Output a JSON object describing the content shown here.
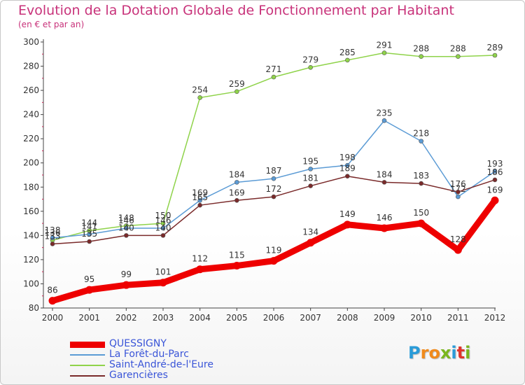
{
  "title": "Evolution de la Dotation Globale de Fonctionnement par Habitant",
  "subtitle": "(en € et par an)",
  "brand": {
    "letters": [
      "P",
      "r",
      "o",
      "x",
      "i",
      "t",
      "i"
    ],
    "colors": [
      "#2a9bd8",
      "#f08a1c",
      "#f08a1c",
      "#7ab61e",
      "#2a9bd8",
      "#e0342c",
      "#7ab61e"
    ]
  },
  "chart_data": {
    "type": "line",
    "x": [
      "2000",
      "2001",
      "2002",
      "2003",
      "2004",
      "2005",
      "2006",
      "2007",
      "2008",
      "2009",
      "2010",
      "2011",
      "2012"
    ],
    "ylim": [
      80,
      300
    ],
    "yticks": [
      "80",
      "100",
      "120",
      "140",
      "160",
      "180",
      "200",
      "220",
      "240",
      "260",
      "280",
      "300"
    ],
    "grid": false,
    "legend_position": "bottom-left",
    "series": [
      {
        "name": "QUESSIGNY",
        "color": "#ee0000",
        "values": [
          86,
          95,
          99,
          101,
          112,
          115,
          119,
          134,
          149,
          146,
          150,
          128,
          169
        ],
        "labels": [
          "86",
          "95",
          "99",
          "101",
          "112",
          "115",
          "119",
          "134",
          "149",
          "146",
          "150",
          "128",
          "169"
        ]
      },
      {
        "name": "La Forêt-du-Parc",
        "color": "#5b9bd5",
        "values": [
          138,
          141,
          146,
          146,
          169,
          184,
          187,
          195,
          198,
          235,
          218,
          172,
          193
        ],
        "labels": [
          "138",
          "141",
          "146",
          "146",
          "169",
          "184",
          "187",
          "195",
          "198",
          "235",
          "218",
          "172",
          "193"
        ]
      },
      {
        "name": "Saint-André-de-l'Eure",
        "color": "#8fd34a",
        "values": [
          136,
          144,
          148,
          150,
          254,
          259,
          271,
          279,
          285,
          291,
          288,
          288,
          289
        ],
        "labels": [
          "136",
          "144",
          "148",
          "150",
          "254",
          "259",
          "271",
          "279",
          "285",
          "291",
          "288",
          "288",
          "289"
        ]
      },
      {
        "name": "Garencières",
        "color": "#7a2a2a",
        "values": [
          133,
          135,
          140,
          140,
          165,
          169,
          172,
          181,
          189,
          184,
          183,
          176,
          186
        ],
        "labels": [
          "133",
          "135",
          "140",
          "140",
          "165",
          "169",
          "172",
          "181",
          "189",
          "184",
          "183",
          "176",
          "186"
        ]
      }
    ]
  }
}
